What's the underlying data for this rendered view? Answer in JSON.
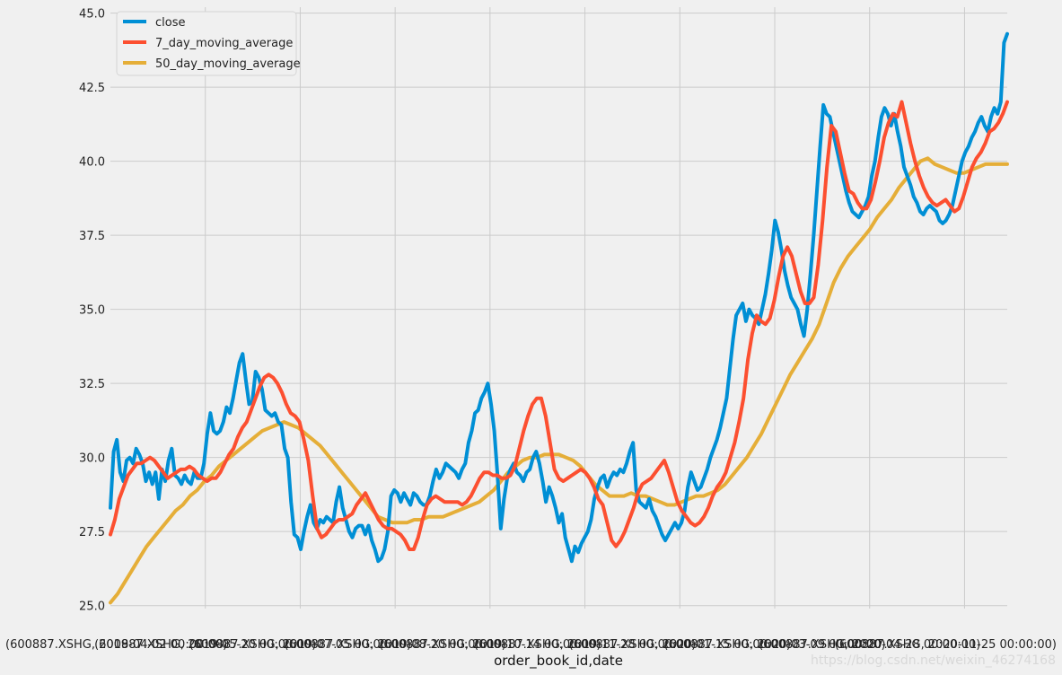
{
  "chart_data": {
    "type": "line",
    "title": "",
    "xlabel": "order_book_id,date",
    "ylabel": "",
    "ylim": [
      24.9,
      45.2
    ],
    "y_ticks": [
      25.0,
      27.5,
      30.0,
      32.5,
      35.0,
      37.5,
      40.0,
      42.5,
      45.0
    ],
    "y_tick_labels": [
      "25.0",
      "27.5",
      "30.0",
      "32.5",
      "35.0",
      "37.5",
      "40.0",
      "42.5",
      "45.0"
    ],
    "x_tick_labels": [
      "(600887.XSHG, 2019-04-02 00:00:00)",
      "(600887.XSHG, 2019-05-20 00:00:00)",
      "(600887.XSHG, 2019-07-05 00:00:00)",
      "(600887.XSHG, 2019-08-20 00:00:00)",
      "(600887.XSHG, 2019-10-14 00:00:00)",
      "(600887.XSHG, 2019-11-28 00:00:00)",
      "(600887.XSHG, 2020-01-15 00:00:00)",
      "(600887.XSHG, 2020-03-09 00:00:00)",
      "(600887.XSHG, 2020-04-28 00:00:00)",
      "(600887.XSHG, 2020-11-25 00:00:00)"
    ],
    "grid": true,
    "legend_position": "top-left",
    "series": [
      {
        "name": "close",
        "color": "#008fd5",
        "values": [
          28.3,
          30.2,
          30.6,
          29.5,
          29.2,
          29.9,
          30.0,
          29.8,
          30.3,
          30.1,
          29.8,
          29.2,
          29.5,
          29.1,
          29.5,
          28.6,
          29.6,
          29.2,
          29.9,
          30.3,
          29.4,
          29.3,
          29.1,
          29.4,
          29.2,
          29.1,
          29.5,
          29.3,
          29.3,
          29.8,
          30.8,
          31.5,
          30.9,
          30.8,
          30.9,
          31.2,
          31.7,
          31.5,
          32.0,
          32.6,
          33.2,
          33.5,
          32.6,
          31.8,
          31.9,
          32.9,
          32.7,
          32.3,
          31.6,
          31.5,
          31.4,
          31.5,
          31.2,
          31.1,
          30.3,
          30.0,
          28.5,
          27.4,
          27.3,
          26.9,
          27.5,
          28.0,
          28.4,
          27.8,
          27.6,
          27.9,
          27.8,
          28.0,
          27.9,
          27.8,
          28.5,
          29.0,
          28.3,
          27.9,
          27.5,
          27.3,
          27.6,
          27.7,
          27.7,
          27.4,
          27.7,
          27.2,
          26.9,
          26.5,
          26.6,
          26.9,
          27.5,
          28.7,
          28.9,
          28.8,
          28.5,
          28.8,
          28.6,
          28.4,
          28.8,
          28.7,
          28.5,
          28.4,
          28.4,
          28.7,
          29.2,
          29.6,
          29.3,
          29.5,
          29.8,
          29.7,
          29.6,
          29.5,
          29.3,
          29.6,
          29.8,
          30.5,
          30.9,
          31.5,
          31.6,
          32.0,
          32.2,
          32.5,
          31.8,
          30.9,
          29.4,
          27.6,
          28.6,
          29.3,
          29.6,
          29.8,
          29.5,
          29.4,
          29.2,
          29.5,
          29.6,
          30.0,
          30.2,
          29.8,
          29.2,
          28.5,
          29.0,
          28.7,
          28.3,
          27.8,
          28.1,
          27.3,
          26.9,
          26.5,
          27.0,
          26.8,
          27.1,
          27.3,
          27.5,
          27.9,
          28.6,
          29.0,
          29.3,
          29.4,
          29.0,
          29.3,
          29.5,
          29.4,
          29.6,
          29.5,
          29.8,
          30.2,
          30.5,
          28.9,
          28.5,
          28.4,
          28.3,
          28.6,
          28.2,
          28.0,
          27.7,
          27.4,
          27.2,
          27.4,
          27.6,
          27.8,
          27.6,
          27.8,
          28.2,
          29.0,
          29.5,
          29.2,
          28.9,
          29.0,
          29.3,
          29.6,
          30.0,
          30.3,
          30.6,
          31.0,
          31.5,
          32.0,
          33.0,
          34.0,
          34.8,
          35.0,
          35.2,
          34.6,
          35.0,
          34.8,
          34.7,
          34.5,
          35.0,
          35.5,
          36.2,
          37.0,
          38.0,
          37.6,
          37.0,
          36.3,
          35.8,
          35.4,
          35.2,
          35.0,
          34.5,
          34.1,
          35.0,
          36.2,
          37.5,
          39.0,
          40.5,
          41.9,
          41.6,
          41.5,
          41.0,
          40.5,
          40.0,
          39.5,
          39.0,
          38.6,
          38.3,
          38.2,
          38.1,
          38.3,
          38.5,
          38.8,
          39.5,
          40.0,
          40.8,
          41.5,
          41.8,
          41.6,
          41.2,
          41.6,
          41.0,
          40.5,
          39.8,
          39.5,
          39.2,
          38.8,
          38.6,
          38.3,
          38.2,
          38.4,
          38.5,
          38.4,
          38.3,
          38.0,
          37.9,
          38.0,
          38.2,
          38.5,
          39.0,
          39.5,
          40.0,
          40.3,
          40.5,
          40.8,
          41.0,
          41.3,
          41.5,
          41.2,
          41.0,
          41.5,
          41.8,
          41.6,
          42.0,
          44.0,
          44.3
        ]
      },
      {
        "name": "7_day_moving_average",
        "color": "#fc4f30",
        "values": [
          27.4,
          27.9,
          28.6,
          29.0,
          29.4,
          29.6,
          29.8,
          29.8,
          29.9,
          30.0,
          29.9,
          29.7,
          29.5,
          29.3,
          29.4,
          29.5,
          29.6,
          29.6,
          29.7,
          29.6,
          29.4,
          29.3,
          29.2,
          29.3,
          29.3,
          29.5,
          29.8,
          30.1,
          30.3,
          30.7,
          31.0,
          31.2,
          31.6,
          32.0,
          32.4,
          32.7,
          32.8,
          32.7,
          32.5,
          32.2,
          31.8,
          31.5,
          31.4,
          31.2,
          30.6,
          29.9,
          28.7,
          27.6,
          27.3,
          27.4,
          27.6,
          27.8,
          27.9,
          27.9,
          28.0,
          28.1,
          28.4,
          28.6,
          28.8,
          28.5,
          28.2,
          27.9,
          27.7,
          27.6,
          27.6,
          27.5,
          27.4,
          27.2,
          26.9,
          26.9,
          27.3,
          27.9,
          28.4,
          28.6,
          28.7,
          28.6,
          28.5,
          28.5,
          28.5,
          28.5,
          28.4,
          28.5,
          28.7,
          29.0,
          29.3,
          29.5,
          29.5,
          29.4,
          29.4,
          29.3,
          29.3,
          29.4,
          29.7,
          30.3,
          30.9,
          31.4,
          31.8,
          32.0,
          32.0,
          31.4,
          30.5,
          29.6,
          29.3,
          29.2,
          29.3,
          29.4,
          29.5,
          29.6,
          29.5,
          29.3,
          29.0,
          28.6,
          28.4,
          27.8,
          27.2,
          27.0,
          27.2,
          27.5,
          27.9,
          28.3,
          28.8,
          29.1,
          29.2,
          29.3,
          29.5,
          29.7,
          29.9,
          29.5,
          29.0,
          28.5,
          28.2,
          28.0,
          27.8,
          27.7,
          27.8,
          28.0,
          28.3,
          28.7,
          29.0,
          29.2,
          29.5,
          30.0,
          30.5,
          31.2,
          32.0,
          33.3,
          34.2,
          34.8,
          34.6,
          34.5,
          34.7,
          35.3,
          36.1,
          36.8,
          37.1,
          36.8,
          36.2,
          35.6,
          35.2,
          35.2,
          35.4,
          36.5,
          38.0,
          39.8,
          41.2,
          41.0,
          40.3,
          39.6,
          39.0,
          38.9,
          38.6,
          38.4,
          38.4,
          38.7,
          39.3,
          40.0,
          40.8,
          41.3,
          41.6,
          41.5,
          42.0,
          41.3,
          40.6,
          40.0,
          39.5,
          39.1,
          38.8,
          38.6,
          38.5,
          38.6,
          38.7,
          38.5,
          38.3,
          38.4,
          38.8,
          39.3,
          39.8,
          40.1,
          40.3,
          40.6,
          41.0,
          41.1,
          41.3,
          41.6,
          42.0
        ]
      },
      {
        "name": "50_day_moving_average",
        "color": "#e5ae38",
        "values": [
          25.1,
          25.4,
          25.8,
          26.2,
          26.6,
          27.0,
          27.3,
          27.6,
          27.9,
          28.2,
          28.4,
          28.7,
          28.9,
          29.2,
          29.4,
          29.7,
          29.9,
          30.1,
          30.3,
          30.5,
          30.7,
          30.9,
          31.0,
          31.1,
          31.2,
          31.1,
          31.0,
          30.8,
          30.6,
          30.4,
          30.1,
          29.8,
          29.5,
          29.2,
          28.9,
          28.6,
          28.3,
          28.0,
          27.9,
          27.8,
          27.8,
          27.8,
          27.9,
          27.9,
          28.0,
          28.0,
          28.0,
          28.1,
          28.2,
          28.3,
          28.4,
          28.5,
          28.7,
          28.9,
          29.2,
          29.5,
          29.7,
          29.9,
          30.0,
          30.0,
          30.1,
          30.1,
          30.1,
          30.0,
          29.9,
          29.7,
          29.4,
          29.1,
          28.9,
          28.7,
          28.7,
          28.7,
          28.8,
          28.7,
          28.7,
          28.6,
          28.5,
          28.4,
          28.4,
          28.5,
          28.6,
          28.7,
          28.7,
          28.8,
          28.9,
          29.1,
          29.4,
          29.7,
          30.0,
          30.4,
          30.8,
          31.3,
          31.8,
          32.3,
          32.8,
          33.2,
          33.6,
          34.0,
          34.5,
          35.2,
          35.9,
          36.4,
          36.8,
          37.1,
          37.4,
          37.7,
          38.1,
          38.4,
          38.7,
          39.1,
          39.4,
          39.7,
          40.0,
          40.1,
          39.9,
          39.8,
          39.7,
          39.6,
          39.6,
          39.7,
          39.8,
          39.9,
          39.9,
          39.9,
          39.9
        ]
      }
    ]
  },
  "watermark": "https://blog.csdn.net/weixin_46274168"
}
